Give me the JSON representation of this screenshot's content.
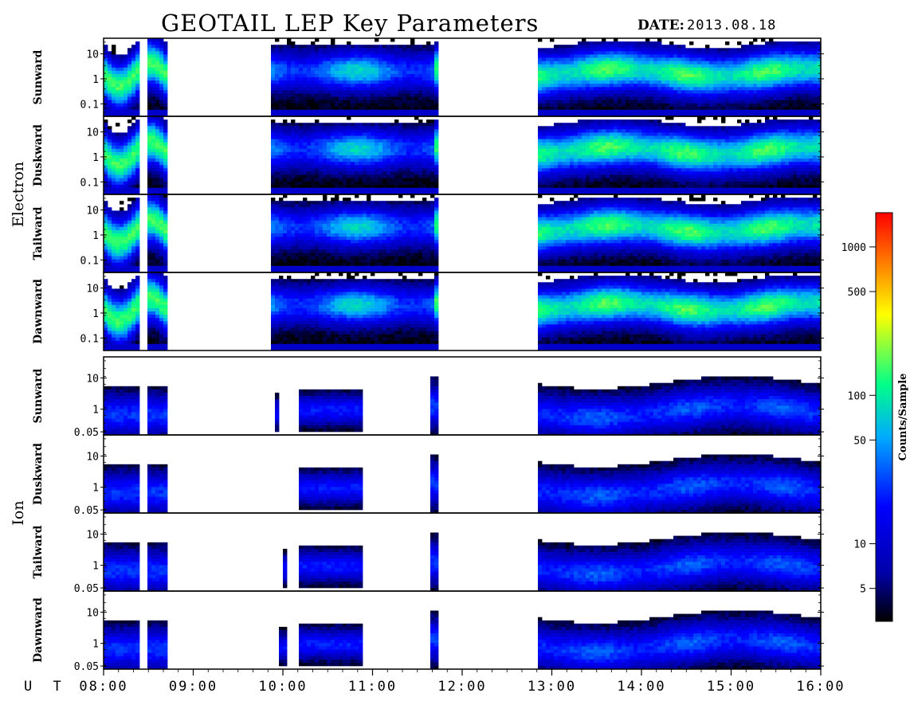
{
  "header": {
    "title": "GEOTAIL LEP Key Parameters",
    "date_label": "DATE:",
    "date_value": "2013.08.18"
  },
  "chart_data": {
    "type": "heatmap",
    "x_axis_label": "U T",
    "x_ticks": [
      "08:00",
      "09:00",
      "10:00",
      "11:00",
      "12:00",
      "13:00",
      "14:00",
      "15:00",
      "16:00"
    ],
    "x_range": [
      "08:00",
      "16:00"
    ],
    "data_gaps": [
      [
        "08:24",
        "08:29"
      ],
      [
        "11:45",
        "12:50"
      ]
    ],
    "groups": [
      {
        "name": "Electron",
        "y_ticks": [
          "10",
          "1",
          "0.1"
        ],
        "panels": [
          "Sunward",
          "Duskward",
          "Tailward",
          "Dawnward"
        ]
      },
      {
        "name": "Ion",
        "y_ticks": [
          "10",
          "1",
          "0.05"
        ],
        "panels": [
          "Sunward",
          "Duskward",
          "Tailward",
          "Dawnward"
        ]
      }
    ],
    "colorbar": {
      "label": "Counts/Sample",
      "ticks": [
        "1000",
        "500",
        "100",
        "50",
        "10",
        "5"
      ],
      "tick_values": [
        1000,
        500,
        100,
        50,
        10,
        5
      ],
      "scale": "log",
      "range": [
        3,
        1700
      ],
      "colors": [
        "#000000",
        "#0000ff",
        "#00ccff",
        "#00ff66",
        "#ffff00",
        "#ff0000"
      ]
    }
  }
}
